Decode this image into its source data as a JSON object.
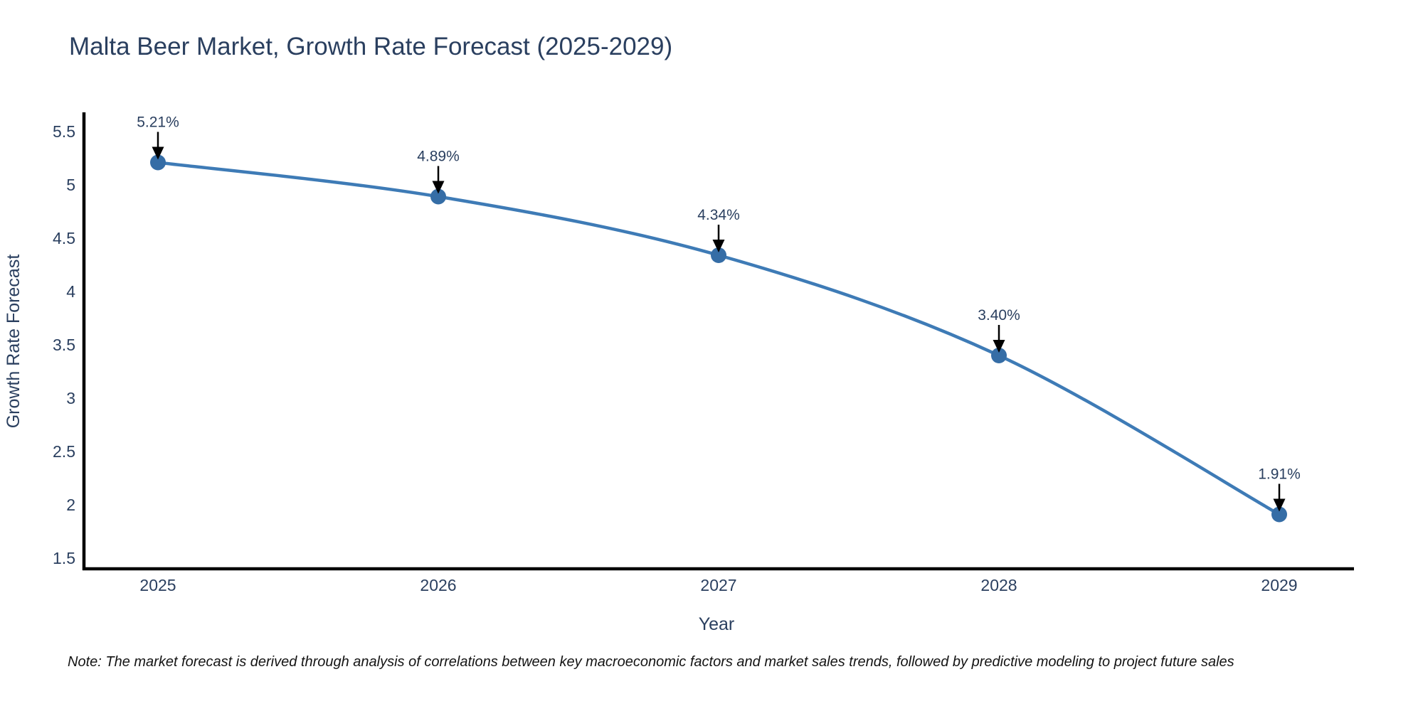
{
  "page": {
    "background": "#ffffff"
  },
  "title": {
    "text": "Malta Beer Market, Growth Rate Forecast (2025-2029)",
    "color": "#2a3f5f"
  },
  "note": {
    "text": "Note: The market forecast is derived through analysis of correlations between key macroeconomic factors and market sales trends, followed by predictive modeling to project future sales"
  },
  "chart_data": {
    "type": "line",
    "title": "Malta Beer Market, Growth Rate Forecast (2025-2029)",
    "xlabel": "Year",
    "ylabel": "Growth Rate Forecast",
    "x": [
      2025,
      2026,
      2027,
      2028,
      2029
    ],
    "xtick_labels": [
      "2025",
      "2026",
      "2027",
      "2028",
      "2029"
    ],
    "series": [
      {
        "name": "Growth Rate Forecast",
        "values": [
          5.21,
          4.89,
          4.34,
          3.4,
          1.91
        ],
        "point_labels": [
          "5.21%",
          "4.89%",
          "4.34%",
          "3.40%",
          "1.91%"
        ]
      }
    ],
    "yticks": [
      5.5,
      5,
      4.5,
      4,
      3.5,
      3,
      2.5,
      2,
      1.5
    ],
    "ytick_labels": [
      "5.5",
      "5",
      "4.5",
      "4",
      "3.5",
      "3",
      "2.5",
      "2",
      "1.5"
    ],
    "ylim": [
      1.4,
      5.68
    ],
    "grid": false,
    "legend": "none",
    "line_shape": "spline",
    "marker_size": 11,
    "line_width": 4.5,
    "annotation_arrows": true,
    "colors": {
      "line": "#3e7bb6",
      "marker": "#356da6",
      "axis": "#000000",
      "arrow": "#000000",
      "text": "#2a3f5f"
    }
  }
}
